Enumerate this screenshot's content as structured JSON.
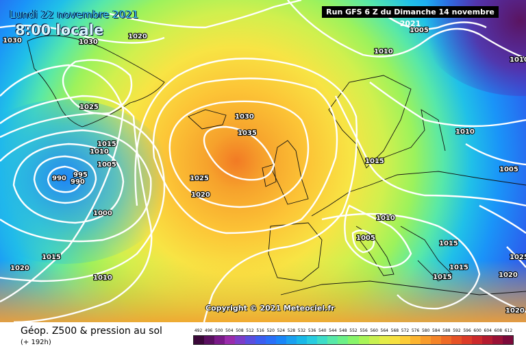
{
  "header": {
    "date": "Lundi 22 novembre 2021",
    "time": "8:00 locale",
    "run": "Run GFS 6 Z du Dimanche 14 novembre 2021"
  },
  "copyright": "Copyright © 2021 Meteociel.fr",
  "footer": {
    "title": "Géop. Z500 & pression au sol",
    "subtitle": "(+ 192h)"
  },
  "scale": {
    "values": [
      "492",
      "496",
      "500",
      "504",
      "508",
      "512",
      "516",
      "520",
      "524",
      "528",
      "532",
      "536",
      "540",
      "544",
      "548",
      "552",
      "556",
      "560",
      "564",
      "568",
      "572",
      "576",
      "580",
      "584",
      "588",
      "592",
      "596",
      "600",
      "604",
      "608",
      "612"
    ],
    "colors": [
      "#3a0838",
      "#5a1060",
      "#7a1a88",
      "#9a2cac",
      "#7c3dc8",
      "#5a4ede",
      "#3c5ef0",
      "#2a70f8",
      "#1a86f8",
      "#1aa0f0",
      "#1ab8e8",
      "#28cce0",
      "#3edcc8",
      "#58e8a8",
      "#6cf088",
      "#88f46a",
      "#a8f458",
      "#c8f050",
      "#e4ec48",
      "#f6e040",
      "#fccc38",
      "#fcb430",
      "#f89c2c",
      "#f48428",
      "#ee6a26",
      "#e65226",
      "#dc3c28",
      "#cc2a2c",
      "#b41c30",
      "#9a1236",
      "#7c0a3a"
    ]
  },
  "isobar_labels": [
    "1030",
    "1030",
    "1025",
    "1020",
    "1005",
    "1010",
    "1010",
    "1025",
    "1015",
    "1010",
    "1005",
    "990",
    "995",
    "990",
    "1000",
    "1025",
    "1020",
    "1030",
    "1035",
    "1015",
    "1015",
    "1010",
    "1005",
    "1010",
    "1005",
    "1015",
    "1015",
    "1015",
    "1020",
    "1025",
    "1020",
    "1020",
    "1010"
  ]
}
